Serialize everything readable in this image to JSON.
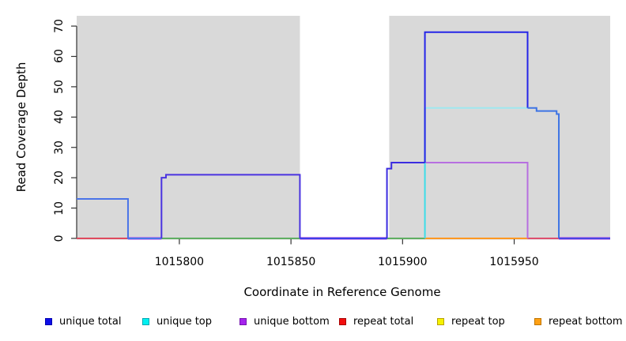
{
  "figure": {
    "y_axis_label": "Read Coverage Depth",
    "x_axis_label": "Coordinate in Reference Genome"
  },
  "legend": {
    "items": [
      {
        "label": "unique total",
        "fill": "#0d0de8",
        "border": "#0000b0"
      },
      {
        "label": "unique top",
        "fill": "#00f0f0",
        "border": "#00a8b4"
      },
      {
        "label": "unique bottom",
        "fill": "#a523ed",
        "border": "#7613b0"
      },
      {
        "label": "repeat total",
        "fill": "#f20d0d",
        "border": "#a80000"
      },
      {
        "label": "repeat top",
        "fill": "#f5f200",
        "border": "#b8a100"
      },
      {
        "label": "repeat bottom",
        "fill": "#ffa013",
        "border": "#bf7500"
      }
    ]
  },
  "chart_data": {
    "type": "line",
    "step": true,
    "title": "",
    "xlabel": "Coordinate in Reference Genome",
    "ylabel": "Read Coverage Depth",
    "xlim": [
      1015754,
      1015993
    ],
    "ylim": [
      0,
      73.4
    ],
    "x_ticks": [
      1015800,
      1015850,
      1015900,
      1015950
    ],
    "y_ticks": [
      0,
      10,
      20,
      30,
      40,
      50,
      60,
      70
    ],
    "grid": false,
    "legend_position": "bottom",
    "plot_background": "#ffffff",
    "highlight_region_color": "#d9d9d9",
    "highlight_regions": [
      {
        "x1": 1015754,
        "x2": 1015854
      },
      {
        "x1": 1015894,
        "x2": 1015993
      }
    ],
    "series": [
      {
        "name": "unique total",
        "color": "#1414e8",
        "step_points": [
          [
            1015754,
            13
          ],
          [
            1015777,
            13
          ],
          [
            1015777,
            0
          ],
          [
            1015792,
            0
          ],
          [
            1015792,
            20
          ],
          [
            1015794,
            20
          ],
          [
            1015794,
            21
          ],
          [
            1015854,
            21
          ],
          [
            1015854,
            0
          ],
          [
            1015893,
            0
          ],
          [
            1015893,
            23
          ],
          [
            1015895,
            23
          ],
          [
            1015895,
            25
          ],
          [
            1015910,
            25
          ],
          [
            1015910,
            68
          ],
          [
            1015956,
            68
          ],
          [
            1015956,
            43
          ],
          [
            1015960,
            43
          ],
          [
            1015960,
            42
          ],
          [
            1015969,
            42
          ],
          [
            1015969,
            41
          ],
          [
            1015970,
            41
          ],
          [
            1015970,
            0
          ],
          [
            1015993,
            0
          ]
        ]
      },
      {
        "name": "unique top",
        "color": "#00d9e0",
        "step_points": [
          [
            1015754,
            0
          ],
          [
            1015910,
            0
          ],
          [
            1015910,
            43
          ],
          [
            1015956,
            43
          ],
          [
            1015956,
            0
          ],
          [
            1015993,
            0
          ]
        ]
      },
      {
        "name": "unique bottom",
        "color": "#a523ed",
        "step_points": [
          [
            1015754,
            0
          ],
          [
            1015792,
            0
          ],
          [
            1015792,
            21
          ],
          [
            1015854,
            21
          ],
          [
            1015854,
            0
          ],
          [
            1015893,
            0
          ],
          [
            1015893,
            25
          ],
          [
            1015956,
            25
          ],
          [
            1015956,
            0
          ],
          [
            1015993,
            0
          ]
        ]
      },
      {
        "name": "repeat total",
        "color": "#f20d0d",
        "step_points": [
          [
            1015754,
            0
          ],
          [
            1015993,
            0
          ]
        ]
      },
      {
        "name": "repeat top",
        "color": "#f5f200",
        "step_points": [
          [
            1015754,
            0
          ],
          [
            1015993,
            0
          ]
        ]
      },
      {
        "name": "repeat bottom",
        "color": "#ffa013",
        "step_points": [
          [
            1015754,
            0
          ],
          [
            1015993,
            0
          ]
        ]
      }
    ],
    "visible_polylines": [
      {
        "color": "#5fae62",
        "w": 2,
        "points": [
          [
            1015792,
            0
          ],
          [
            1015854,
            0
          ]
        ]
      },
      {
        "color": "#5fae62",
        "w": 2,
        "points": [
          [
            1015893,
            0
          ],
          [
            1015910,
            0
          ]
        ]
      },
      {
        "color": "#df4a5e",
        "w": 2,
        "points": [
          [
            1015754,
            0
          ],
          [
            1015777,
            0
          ]
        ]
      },
      {
        "color": "#dd4f6e",
        "w": 2,
        "points": [
          [
            1015956,
            0
          ],
          [
            1015970,
            0
          ]
        ]
      },
      {
        "color": "#ff9822",
        "w": 2,
        "points": [
          [
            1015910,
            0
          ],
          [
            1015956,
            0
          ]
        ]
      },
      {
        "color": "#b770e8",
        "w": 3.6,
        "points": [
          [
            1015777,
            0
          ],
          [
            1015792,
            0
          ]
        ]
      },
      {
        "color": "#b770e8",
        "w": 3.6,
        "points": [
          [
            1015854,
            0
          ],
          [
            1015893,
            0
          ]
        ]
      },
      {
        "color": "#b770e8",
        "w": 3.6,
        "points": [
          [
            1015970,
            0
          ],
          [
            1015993,
            0
          ]
        ]
      },
      {
        "color": "#b76fe0",
        "w": 2,
        "points": [
          [
            1015910,
            25
          ],
          [
            1015956,
            25
          ],
          [
            1015956,
            0
          ]
        ]
      },
      {
        "color": "#9fe8ef",
        "w": 2,
        "points": [
          [
            1015910,
            43
          ],
          [
            1015956,
            43
          ]
        ]
      },
      {
        "color": "#3cdde8",
        "w": 2,
        "points": [
          [
            1015910,
            0
          ],
          [
            1015910,
            43
          ]
        ]
      },
      {
        "color": "#4a74e8",
        "w": 2,
        "points": [
          [
            1015754,
            13
          ],
          [
            1015777,
            13
          ],
          [
            1015777,
            0
          ],
          [
            1015792,
            0
          ]
        ]
      },
      {
        "color": "#4a33e0",
        "w": 2,
        "points": [
          [
            1015792,
            0
          ],
          [
            1015792,
            20
          ],
          [
            1015794,
            20
          ],
          [
            1015794,
            21
          ],
          [
            1015854,
            21
          ],
          [
            1015854,
            0
          ]
        ]
      },
      {
        "color": "#3d3de8",
        "w": 2,
        "points": [
          [
            1015854,
            0
          ],
          [
            1015893,
            0
          ]
        ]
      },
      {
        "color": "#3b2ce0",
        "w": 2,
        "points": [
          [
            1015893,
            0
          ],
          [
            1015893,
            23
          ],
          [
            1015895,
            23
          ],
          [
            1015895,
            25
          ],
          [
            1015910,
            25
          ]
        ]
      },
      {
        "color": "#2525e8",
        "w": 2,
        "points": [
          [
            1015910,
            25
          ],
          [
            1015910,
            68
          ],
          [
            1015956,
            68
          ],
          [
            1015956,
            43
          ]
        ]
      },
      {
        "color": "#3e74e4",
        "w": 2,
        "points": [
          [
            1015956,
            43
          ],
          [
            1015960,
            43
          ],
          [
            1015960,
            42
          ],
          [
            1015969,
            42
          ],
          [
            1015969,
            41
          ],
          [
            1015970,
            41
          ],
          [
            1015970,
            0
          ]
        ]
      },
      {
        "color": "#4944e2",
        "w": 2,
        "points": [
          [
            1015970,
            0
          ],
          [
            1015993,
            0
          ]
        ]
      }
    ]
  }
}
